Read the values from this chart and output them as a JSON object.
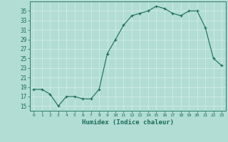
{
  "x": [
    0,
    1,
    2,
    3,
    4,
    5,
    6,
    7,
    8,
    9,
    10,
    11,
    12,
    13,
    14,
    15,
    16,
    17,
    18,
    19,
    20,
    21,
    22,
    23
  ],
  "y": [
    18.5,
    18.5,
    17.5,
    15.0,
    17.0,
    17.0,
    16.5,
    16.5,
    18.5,
    26.0,
    29.0,
    32.0,
    34.0,
    34.5,
    35.0,
    36.0,
    35.5,
    34.5,
    34.0,
    35.0,
    35.0,
    31.5,
    25.0,
    23.5
  ],
  "line_color": "#1a6b5a",
  "marker": "+",
  "bg_color": "#b2ddd4",
  "grid_color": "#d0ece8",
  "xlabel": "Humidex (Indice chaleur)",
  "ytick_start": 15,
  "ytick_end": 35,
  "ytick_step": 2,
  "xlim": [
    -0.5,
    23.5
  ],
  "ylim": [
    14.0,
    37.0
  ]
}
